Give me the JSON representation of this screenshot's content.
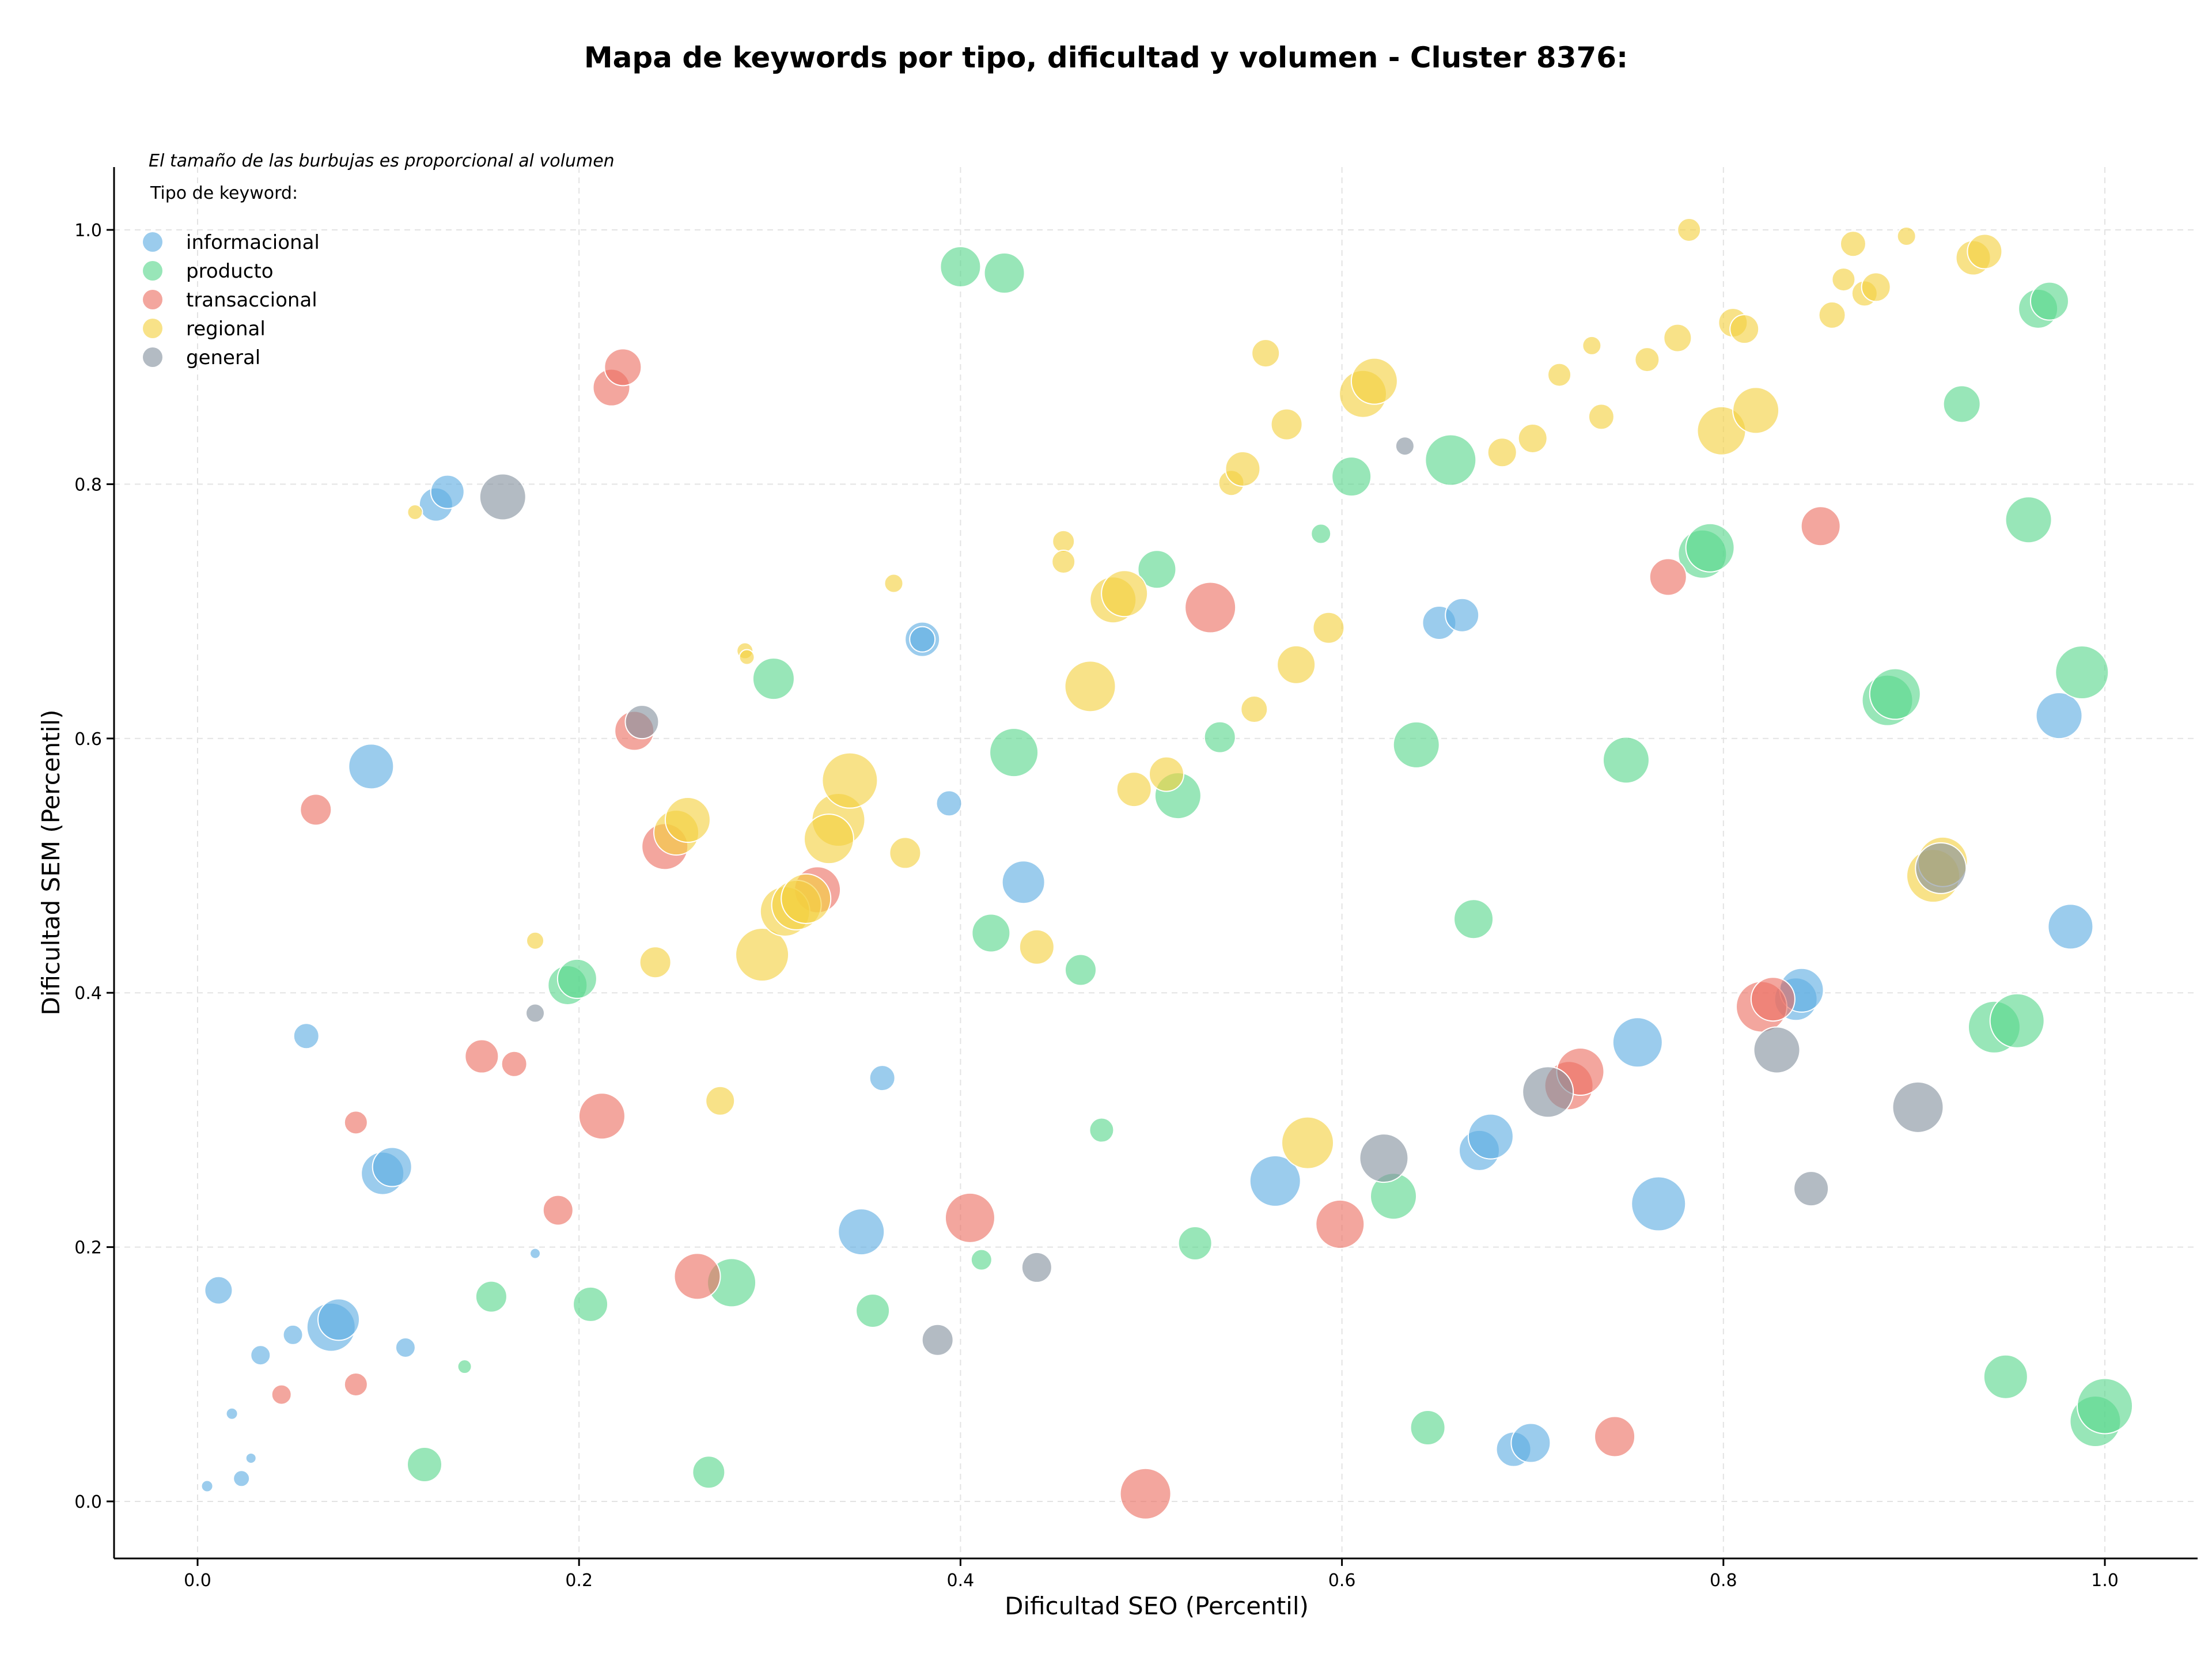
{
  "chart_data": {
    "type": "scatter",
    "title": "Mapa de keywords por tipo, dificultad y volumen - Cluster 8376:",
    "xlabel": "Dificultad SEO (Percentil)",
    "ylabel": "Dificultad SEM (Percentil)",
    "xlim": [
      -0.045,
      1.05
    ],
    "ylim": [
      -0.045,
      1.05
    ],
    "x_ticks": [
      "0.0",
      "0.2",
      "0.4",
      "0.6",
      "0.8",
      "1.0"
    ],
    "y_ticks": [
      "0.0",
      "0.2",
      "0.4",
      "0.6",
      "0.8",
      "1.0"
    ],
    "grid": true,
    "annotation": "El tamaño de las burbujas es proporcional al volumen",
    "legend_title": "Tipo de keyword:",
    "legend_position": "top-left",
    "series": [
      {
        "name": "informacional",
        "color": "#5dade2",
        "points": [
          [
            0.005,
            0.012,
            10
          ],
          [
            0.018,
            0.069,
            10
          ],
          [
            0.023,
            0.018,
            14
          ],
          [
            0.028,
            0.034,
            9
          ],
          [
            0.033,
            0.115,
            17
          ],
          [
            0.011,
            0.166,
            24
          ],
          [
            0.05,
            0.131,
            17
          ],
          [
            0.07,
            0.137,
            42
          ],
          [
            0.074,
            0.143,
            36
          ],
          [
            0.057,
            0.366,
            22
          ],
          [
            0.091,
            0.578,
            39
          ],
          [
            0.097,
            0.258,
            37
          ],
          [
            0.102,
            0.263,
            34
          ],
          [
            0.109,
            0.121,
            17
          ],
          [
            0.125,
            0.784,
            29
          ],
          [
            0.131,
            0.794,
            29
          ],
          [
            0.177,
            0.195,
            9
          ],
          [
            0.359,
            0.333,
            22
          ],
          [
            0.348,
            0.212,
            40
          ],
          [
            0.38,
            0.678,
            30
          ],
          [
            0.38,
            0.678,
            22
          ],
          [
            0.394,
            0.549,
            22
          ],
          [
            0.433,
            0.487,
            37
          ],
          [
            0.565,
            0.252,
            44
          ],
          [
            0.651,
            0.691,
            29
          ],
          [
            0.663,
            0.697,
            29
          ],
          [
            0.672,
            0.276,
            35
          ],
          [
            0.678,
            0.287,
            39
          ],
          [
            0.69,
            0.041,
            30
          ],
          [
            0.699,
            0.046,
            34
          ],
          [
            0.755,
            0.361,
            43
          ],
          [
            0.766,
            0.234,
            47
          ],
          [
            0.838,
            0.395,
            37
          ],
          [
            0.841,
            0.402,
            38
          ],
          [
            0.976,
            0.618,
            40
          ],
          [
            0.982,
            0.452,
            39
          ]
        ]
      },
      {
        "name": "producto",
        "color": "#58d68d",
        "points": [
          [
            0.119,
            0.029,
            30
          ],
          [
            0.14,
            0.106,
            12
          ],
          [
            0.154,
            0.161,
            27
          ],
          [
            0.194,
            0.406,
            34
          ],
          [
            0.199,
            0.411,
            34
          ],
          [
            0.206,
            0.155,
            30
          ],
          [
            0.268,
            0.023,
            28
          ],
          [
            0.28,
            0.172,
            42
          ],
          [
            0.302,
            0.647,
            36
          ],
          [
            0.354,
            0.15,
            29
          ],
          [
            0.4,
            0.971,
            35
          ],
          [
            0.423,
            0.966,
            35
          ],
          [
            0.411,
            0.19,
            18
          ],
          [
            0.416,
            0.447,
            33
          ],
          [
            0.428,
            0.589,
            42
          ],
          [
            0.463,
            0.418,
            27
          ],
          [
            0.474,
            0.292,
            21
          ],
          [
            0.503,
            0.733,
            33
          ],
          [
            0.514,
            0.555,
            40
          ],
          [
            0.523,
            0.203,
            29
          ],
          [
            0.536,
            0.601,
            27
          ],
          [
            0.589,
            0.761,
            17
          ],
          [
            0.605,
            0.806,
            34
          ],
          [
            0.627,
            0.24,
            40
          ],
          [
            0.639,
            0.595,
            40
          ],
          [
            0.645,
            0.058,
            30
          ],
          [
            0.657,
            0.819,
            44
          ],
          [
            0.669,
            0.458,
            34
          ],
          [
            0.749,
            0.583,
            40
          ],
          [
            0.789,
            0.745,
            42
          ],
          [
            0.793,
            0.75,
            42
          ],
          [
            0.886,
            0.63,
            44
          ],
          [
            0.89,
            0.635,
            44
          ],
          [
            0.925,
            0.863,
            32
          ],
          [
            0.942,
            0.373,
            45
          ],
          [
            0.954,
            0.378,
            47
          ],
          [
            0.948,
            0.098,
            38
          ],
          [
            0.96,
            0.772,
            40
          ],
          [
            0.965,
            0.938,
            34
          ],
          [
            0.971,
            0.944,
            33
          ],
          [
            0.988,
            0.652,
            46
          ],
          [
            0.995,
            0.063,
            44
          ],
          [
            1.0,
            0.075,
            48
          ]
        ]
      },
      {
        "name": "transaccional",
        "color": "#ec7063",
        "points": [
          [
            0.044,
            0.084,
            17
          ],
          [
            0.062,
            0.544,
            27
          ],
          [
            0.083,
            0.298,
            20
          ],
          [
            0.083,
            0.092,
            20
          ],
          [
            0.149,
            0.35,
            29
          ],
          [
            0.166,
            0.344,
            22
          ],
          [
            0.189,
            0.229,
            26
          ],
          [
            0.212,
            0.303,
            40
          ],
          [
            0.217,
            0.876,
            32
          ],
          [
            0.223,
            0.892,
            32
          ],
          [
            0.229,
            0.606,
            34
          ],
          [
            0.245,
            0.515,
            40
          ],
          [
            0.262,
            0.177,
            40
          ],
          [
            0.325,
            0.481,
            40
          ],
          [
            0.405,
            0.223,
            43
          ],
          [
            0.497,
            0.006,
            44
          ],
          [
            0.531,
            0.703,
            44
          ],
          [
            0.599,
            0.218,
            42
          ],
          [
            0.719,
            0.327,
            42
          ],
          [
            0.725,
            0.338,
            41
          ],
          [
            0.743,
            0.051,
            35
          ],
          [
            0.771,
            0.727,
            32
          ],
          [
            0.851,
            0.767,
            34
          ],
          [
            0.82,
            0.389,
            44
          ],
          [
            0.826,
            0.395,
            38
          ]
        ]
      },
      {
        "name": "regional",
        "color": "#f4d03f",
        "points": [
          [
            0.114,
            0.778,
            13
          ],
          [
            0.177,
            0.441,
            15
          ],
          [
            0.24,
            0.424,
            27
          ],
          [
            0.251,
            0.526,
            39
          ],
          [
            0.257,
            0.536,
            39
          ],
          [
            0.274,
            0.315,
            25
          ],
          [
            0.287,
            0.669,
            14
          ],
          [
            0.288,
            0.664,
            13
          ],
          [
            0.296,
            0.43,
            46
          ],
          [
            0.308,
            0.464,
            43
          ],
          [
            0.314,
            0.469,
            43
          ],
          [
            0.319,
            0.474,
            43
          ],
          [
            0.336,
            0.536,
            46
          ],
          [
            0.342,
            0.567,
            48
          ],
          [
            0.331,
            0.521,
            43
          ],
          [
            0.365,
            0.722,
            16
          ],
          [
            0.371,
            0.51,
            27
          ],
          [
            0.44,
            0.436,
            30
          ],
          [
            0.454,
            0.755,
            19
          ],
          [
            0.454,
            0.739,
            20
          ],
          [
            0.468,
            0.641,
            44
          ],
          [
            0.48,
            0.709,
            40
          ],
          [
            0.486,
            0.714,
            40
          ],
          [
            0.491,
            0.56,
            30
          ],
          [
            0.508,
            0.572,
            30
          ],
          [
            0.542,
            0.801,
            22
          ],
          [
            0.548,
            0.812,
            30
          ],
          [
            0.554,
            0.623,
            23
          ],
          [
            0.56,
            0.903,
            24
          ],
          [
            0.571,
            0.847,
            27
          ],
          [
            0.576,
            0.658,
            33
          ],
          [
            0.582,
            0.282,
            45
          ],
          [
            0.593,
            0.687,
            27
          ],
          [
            0.611,
            0.871,
            41
          ],
          [
            0.617,
            0.881,
            40
          ],
          [
            0.684,
            0.825,
            25
          ],
          [
            0.7,
            0.836,
            25
          ],
          [
            0.714,
            0.886,
            20
          ],
          [
            0.731,
            0.909,
            16
          ],
          [
            0.736,
            0.853,
            22
          ],
          [
            0.76,
            0.898,
            21
          ],
          [
            0.776,
            0.915,
            24
          ],
          [
            0.782,
            1.0,
            20
          ],
          [
            0.799,
            0.842,
            42
          ],
          [
            0.817,
            0.858,
            40
          ],
          [
            0.805,
            0.927,
            25
          ],
          [
            0.811,
            0.922,
            25
          ],
          [
            0.857,
            0.933,
            23
          ],
          [
            0.863,
            0.961,
            20
          ],
          [
            0.868,
            0.989,
            22
          ],
          [
            0.874,
            0.95,
            22
          ],
          [
            0.88,
            0.955,
            25
          ],
          [
            0.896,
            0.995,
            16
          ],
          [
            0.91,
            0.492,
            46
          ],
          [
            0.915,
            0.503,
            43
          ],
          [
            0.931,
            0.978,
            30
          ],
          [
            0.937,
            0.983,
            30
          ]
        ]
      },
      {
        "name": "general",
        "color": "#85929e",
        "points": [
          [
            0.16,
            0.79,
            40
          ],
          [
            0.177,
            0.384,
            16
          ],
          [
            0.233,
            0.613,
            29
          ],
          [
            0.388,
            0.127,
            27
          ],
          [
            0.44,
            0.184,
            26
          ],
          [
            0.622,
            0.27,
            42
          ],
          [
            0.633,
            0.83,
            16
          ],
          [
            0.708,
            0.322,
            44
          ],
          [
            0.828,
            0.355,
            40
          ],
          [
            0.846,
            0.246,
            30
          ],
          [
            0.902,
            0.31,
            44
          ],
          [
            0.914,
            0.498,
            44
          ]
        ]
      }
    ]
  }
}
